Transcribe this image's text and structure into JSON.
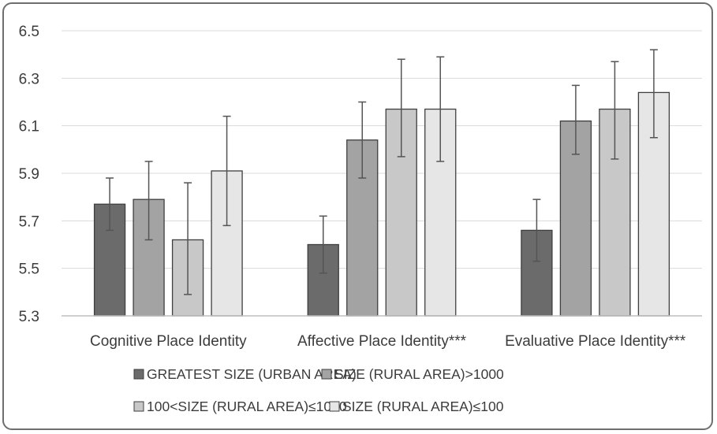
{
  "chart_data": {
    "type": "bar",
    "title": "",
    "xlabel": "",
    "ylabel": "",
    "ylim": [
      5.3,
      6.5
    ],
    "yticks": [
      "5.3",
      "5.5",
      "5.7",
      "5.9",
      "6.1",
      "6.3",
      "6.5"
    ],
    "grid": true,
    "legend_position": "bottom",
    "categories": [
      "Cognitive Place Identity",
      "Affective Place Identity***",
      "Evaluative Place Identity***"
    ],
    "series": [
      {
        "name": "GREATEST SIZE (URBAN AREA)",
        "color": "#6b6b6b",
        "values": [
          5.77,
          5.6,
          5.66
        ],
        "error_low": [
          5.66,
          5.48,
          5.53
        ],
        "error_high": [
          5.88,
          5.72,
          5.79
        ]
      },
      {
        "name": "SIZE (RURAL AREA)>1000",
        "color": "#a3a3a3",
        "values": [
          5.79,
          6.04,
          6.12
        ],
        "error_low": [
          5.62,
          5.88,
          5.98
        ],
        "error_high": [
          5.95,
          6.2,
          6.27
        ]
      },
      {
        "name": "100<SIZE (RURAL AREA)≤1000",
        "color": "#c8c8c8",
        "values": [
          5.62,
          6.17,
          6.17
        ],
        "error_low": [
          5.39,
          5.97,
          5.96
        ],
        "error_high": [
          5.86,
          6.38,
          6.37
        ]
      },
      {
        "name": "SIZE (RURAL AREA)≤100",
        "color": "#e6e6e6",
        "values": [
          5.91,
          6.17,
          6.24
        ],
        "error_low": [
          5.68,
          5.95,
          6.05
        ],
        "error_high": [
          6.14,
          6.39,
          6.42
        ]
      }
    ]
  }
}
